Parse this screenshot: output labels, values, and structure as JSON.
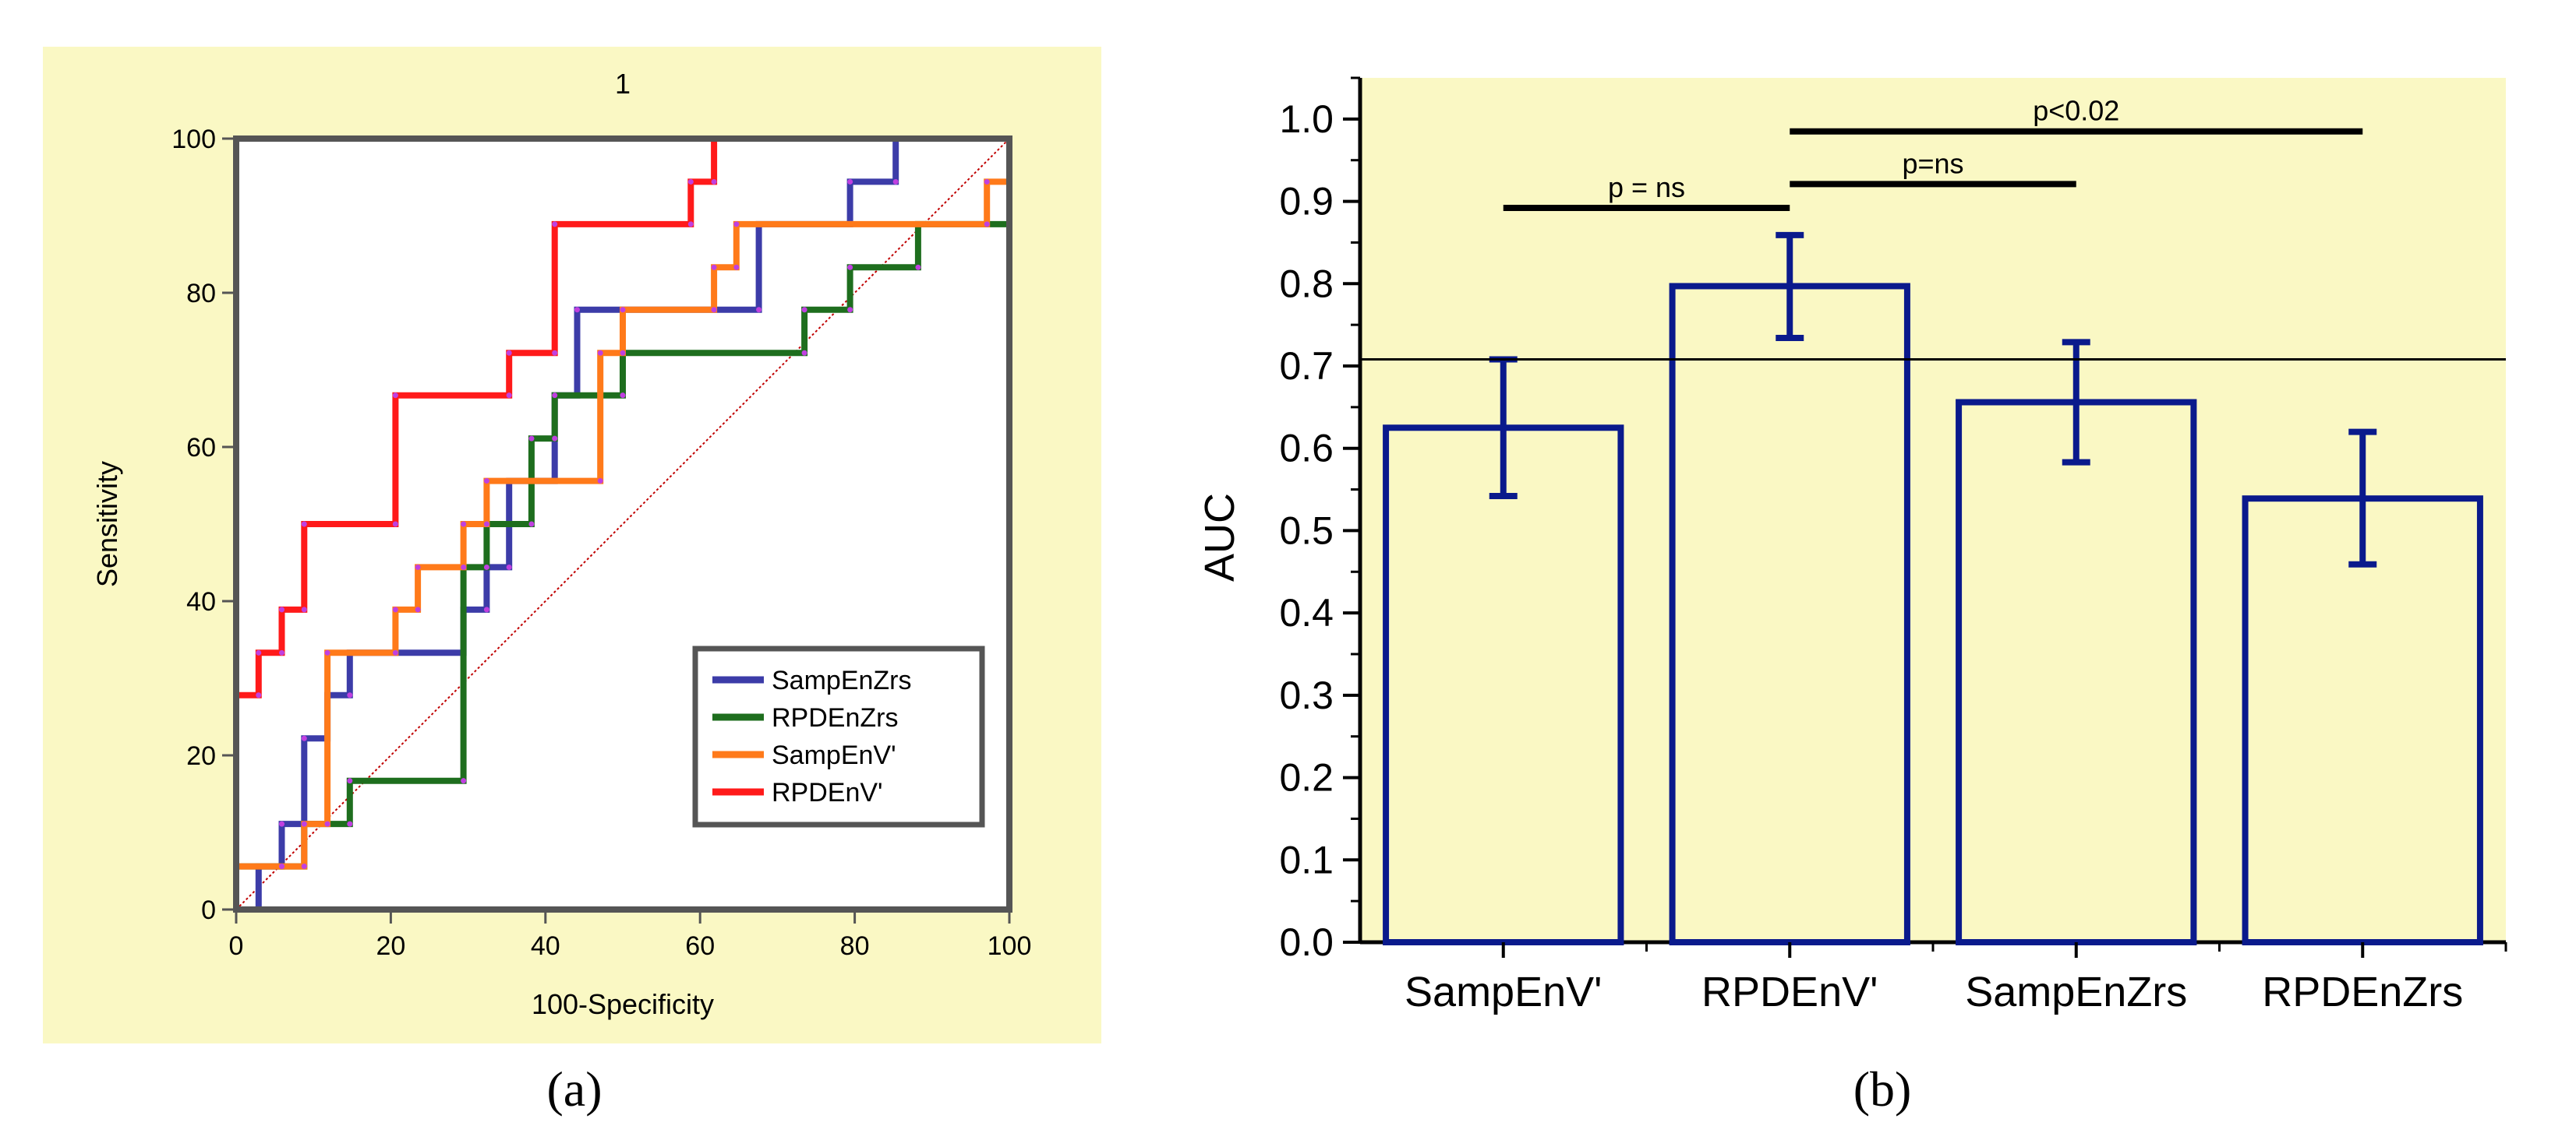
{
  "panels": {
    "a": {
      "caption": "(a)"
    },
    "b": {
      "caption": "(b)"
    }
  },
  "colors": {
    "panel_bg": "#FAF8C4",
    "axis_a": "#555555",
    "bar_stroke": "#0A1A8C",
    "sampenzrs": "#3C3CA8",
    "rpdenzrs": "#1E6E1E",
    "sampenv": "#FF7A1A",
    "rpdenv": "#FF1A1A",
    "diagonal": "#C00000"
  },
  "chart_data": [
    {
      "type": "line",
      "title": "1",
      "xlabel": "100-Specificity",
      "ylabel": "Sensitivity",
      "xlim": [
        0,
        100
      ],
      "ylim": [
        0,
        100
      ],
      "xticks": [
        0,
        20,
        40,
        60,
        80,
        100
      ],
      "yticks": [
        0,
        20,
        40,
        60,
        80,
        100
      ],
      "legend_position": "bottom-right",
      "reference_line": {
        "name": "chance",
        "x": [
          0,
          100
        ],
        "y": [
          0,
          100
        ]
      },
      "series": [
        {
          "name": "SampEnZrs",
          "color": "#3C3CA8",
          "x": [
            0,
            2.9,
            2.9,
            5.9,
            5.9,
            8.8,
            8.8,
            11.8,
            11.8,
            14.7,
            14.7,
            29.4,
            29.4,
            32.4,
            32.4,
            35.3,
            35.3,
            41.2,
            41.2,
            44.1,
            44.1,
            67.6,
            67.6,
            79.4,
            79.4,
            85.3,
            85.3,
            100
          ],
          "y": [
            0,
            0,
            5.6,
            5.6,
            11.1,
            11.1,
            22.2,
            22.2,
            27.8,
            27.8,
            33.3,
            33.3,
            38.9,
            38.9,
            44.4,
            44.4,
            55.6,
            55.6,
            66.7,
            66.7,
            77.8,
            77.8,
            88.9,
            88.9,
            94.4,
            94.4,
            100,
            100
          ]
        },
        {
          "name": "RPDEnZrs",
          "color": "#1E6E1E",
          "x": [
            0,
            0,
            5.9,
            5.9,
            8.8,
            8.8,
            11.8,
            11.8,
            14.7,
            14.7,
            29.4,
            29.4,
            32.4,
            32.4,
            38.2,
            38.2,
            41.2,
            41.2,
            50.0,
            50.0,
            73.5,
            73.5,
            79.4,
            79.4,
            88.2,
            88.2,
            100,
            100
          ],
          "y": [
            0,
            5.6,
            5.6,
            5.6,
            5.6,
            11.1,
            11.1,
            11.1,
            11.1,
            16.7,
            16.7,
            44.4,
            44.4,
            50.0,
            50.0,
            61.1,
            61.1,
            66.7,
            66.7,
            72.2,
            72.2,
            77.8,
            77.8,
            83.3,
            83.3,
            88.9,
            88.9,
            94.4
          ]
        },
        {
          "name": "SampEnV'",
          "color": "#FF7A1A",
          "x": [
            0,
            0,
            5.9,
            5.9,
            8.8,
            8.8,
            11.8,
            11.8,
            20.6,
            20.6,
            23.5,
            23.5,
            29.4,
            29.4,
            32.4,
            32.4,
            47.1,
            47.1,
            50.0,
            50.0,
            61.8,
            61.8,
            64.7,
            64.7,
            97.1,
            97.1,
            100,
            100
          ],
          "y": [
            0,
            5.6,
            5.6,
            5.6,
            5.6,
            11.1,
            11.1,
            33.3,
            33.3,
            38.9,
            38.9,
            44.4,
            44.4,
            50.0,
            50.0,
            55.6,
            55.6,
            72.2,
            72.2,
            77.8,
            77.8,
            83.3,
            83.3,
            88.9,
            88.9,
            94.4,
            94.4,
            100
          ]
        },
        {
          "name": "RPDEnV'",
          "color": "#FF1A1A",
          "x": [
            0,
            0,
            2.9,
            2.9,
            5.9,
            5.9,
            8.8,
            8.8,
            20.6,
            20.6,
            35.3,
            35.3,
            41.2,
            41.2,
            58.8,
            58.8,
            61.8,
            61.8,
            100
          ],
          "y": [
            0,
            27.8,
            27.8,
            33.3,
            33.3,
            38.9,
            38.9,
            50.0,
            50.0,
            66.7,
            66.7,
            72.2,
            72.2,
            88.9,
            88.9,
            94.4,
            94.4,
            100,
            100
          ]
        }
      ]
    },
    {
      "type": "bar",
      "title": "",
      "xlabel": "",
      "ylabel": "AUC",
      "ylim": [
        0,
        1.05
      ],
      "yticks": [
        0.0,
        0.1,
        0.2,
        0.3,
        0.4,
        0.5,
        0.6,
        0.7,
        0.8,
        0.9,
        1.0
      ],
      "ytick_labels": [
        "0.0",
        "0.1",
        "0.2",
        "0.3",
        "0.4",
        "0.5",
        "0.6",
        "0.7",
        "0.8",
        "0.9",
        "1.0"
      ],
      "categories": [
        "SampEnV'",
        "RPDEnV'",
        "SampEnZrs",
        "RPDEnZrs"
      ],
      "values": [
        0.625,
        0.797,
        0.656,
        0.539
      ],
      "error_low": [
        0.542,
        0.734,
        0.583,
        0.459
      ],
      "error_high": [
        0.708,
        0.859,
        0.729,
        0.62
      ],
      "reference_line": 0.708,
      "significance": [
        {
          "label": "p = ns",
          "from": 0,
          "to": 1,
          "y": 0.892
        },
        {
          "label": "p=ns",
          "from": 1,
          "to": 2,
          "y": 0.921
        },
        {
          "label": "p<0.02",
          "from": 1,
          "to": 3,
          "y": 0.985
        }
      ]
    }
  ]
}
